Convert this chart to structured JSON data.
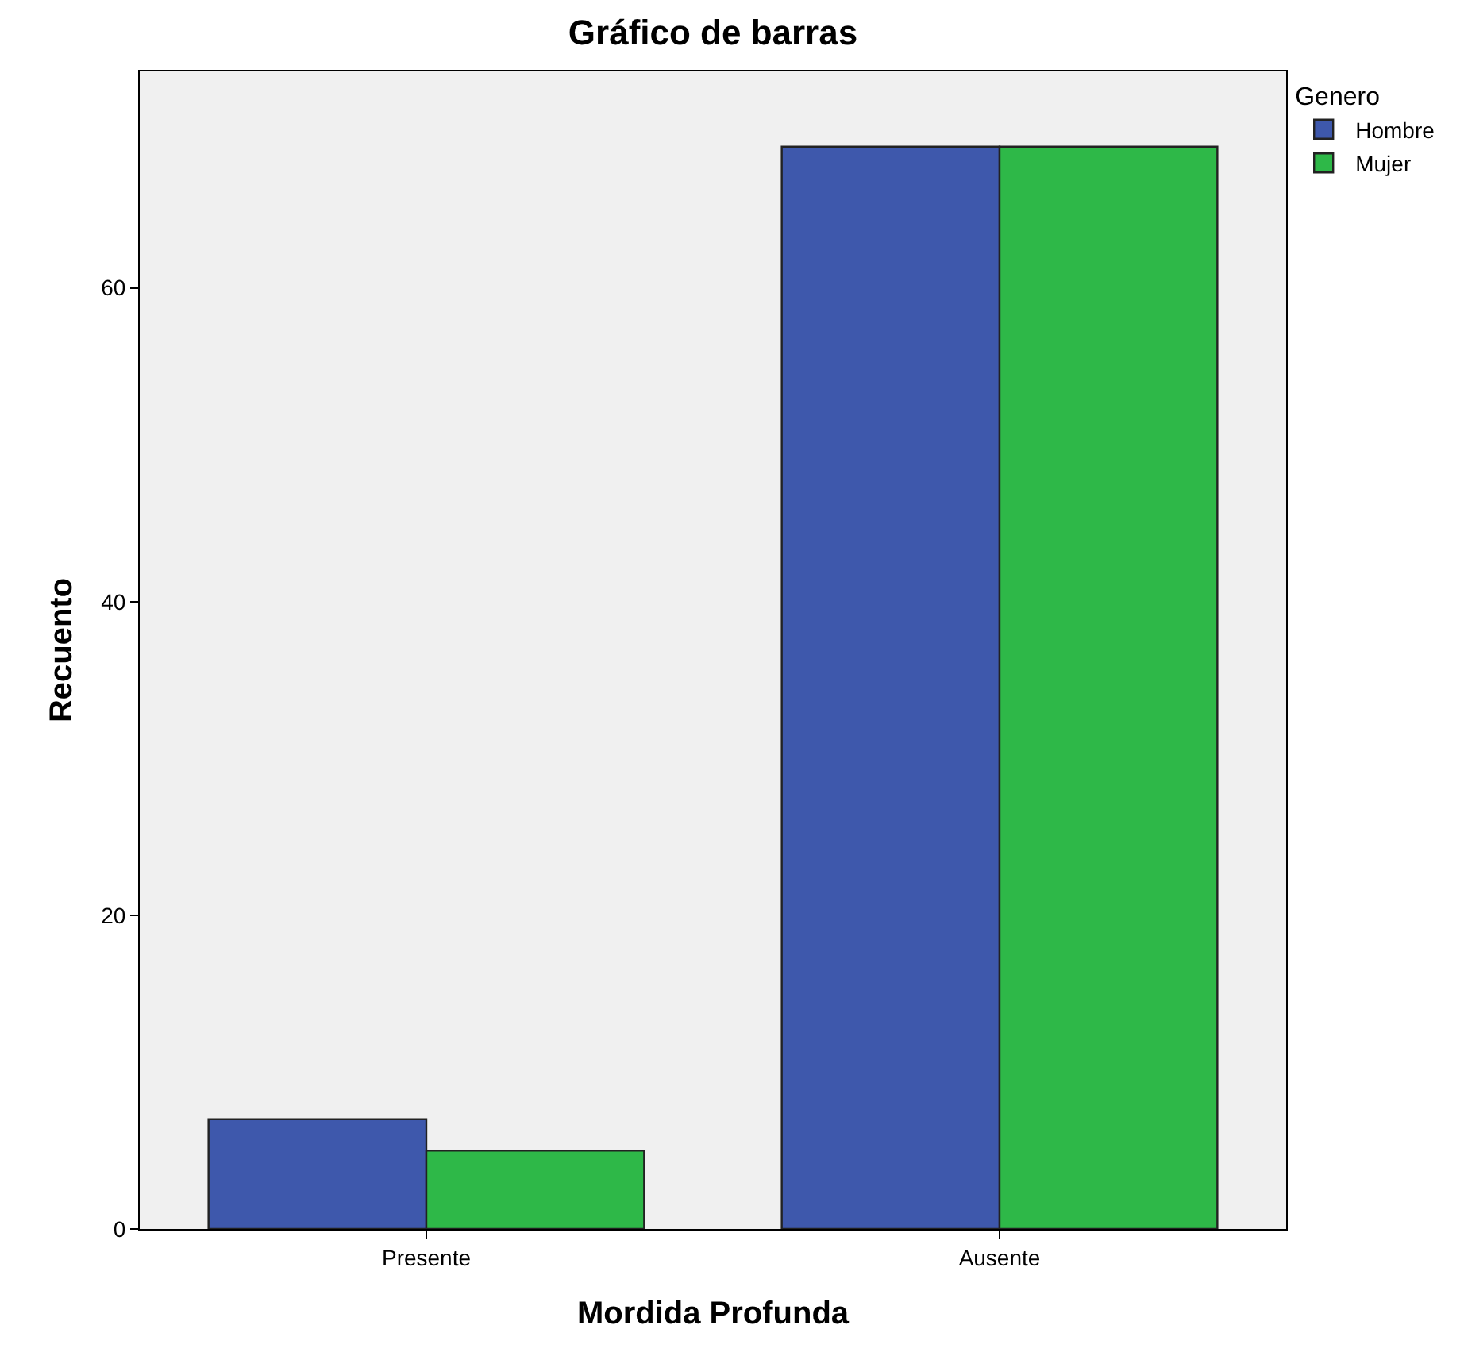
{
  "chart_data": {
    "type": "bar",
    "title": "Gráfico de barras",
    "xlabel": "Mordida Profunda",
    "ylabel": "Recuento",
    "legend_title": "Genero",
    "categories": [
      "Presente",
      "Ausente"
    ],
    "series": [
      {
        "name": "Hombre",
        "color": "#3e58ac",
        "values": [
          7,
          69
        ]
      },
      {
        "name": "Mujer",
        "color": "#2eb848",
        "values": [
          5,
          69
        ]
      }
    ],
    "ylim": [
      0,
      73.8
    ],
    "yticks": [
      0,
      20,
      40,
      60
    ],
    "grid": false,
    "legend": "top right"
  }
}
